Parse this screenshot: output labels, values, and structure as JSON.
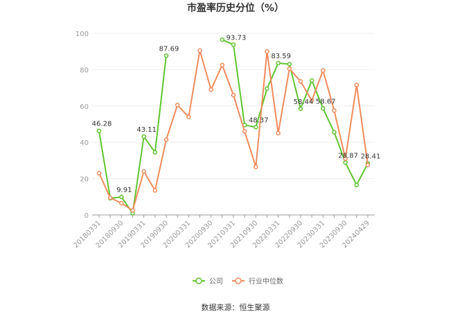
{
  "chart_data": {
    "type": "line",
    "title": "市盈率历史分位（%）",
    "source": "数据来源：恒生聚源",
    "xlabel": "",
    "ylabel": "",
    "ylim": [
      0,
      100
    ],
    "y_ticks": [
      0,
      20,
      40,
      60,
      80,
      100
    ],
    "grid": true,
    "legend_position": "bottom",
    "x": [
      "20180331",
      "20180630",
      "20180930",
      "20181231",
      "20190331",
      "20190630",
      "20190930",
      "20191231",
      "20200331",
      "20200630",
      "20200930",
      "20201231",
      "20210331",
      "20210630",
      "20210930",
      "20211231",
      "20220331",
      "20220630",
      "20220930",
      "20221231",
      "20230331",
      "20230630",
      "20230930",
      "20231231",
      "20240429"
    ],
    "x_tick_labels": [
      "20180331",
      "20180930",
      "20190331",
      "20190930",
      "20200331",
      "20200930",
      "20210331",
      "20210930",
      "20220331",
      "20220930",
      "20230331",
      "20230930",
      "20240429"
    ],
    "series": [
      {
        "name": "公司",
        "color": "#5fc42f",
        "values": [
          46.28,
          9.2,
          9.91,
          1.0,
          43.11,
          34.5,
          87.69,
          null,
          null,
          null,
          null,
          96.5,
          93.73,
          49.5,
          48.37,
          69.5,
          83.59,
          83.0,
          58.44,
          74.0,
          58.67,
          45.5,
          28.87,
          16.5,
          28.41
        ],
        "labels": [
          "46.28",
          "",
          "9.91",
          "",
          "43.11",
          "",
          "87.69",
          "",
          "",
          "",
          "",
          "",
          "93.73",
          "",
          "48.37",
          "",
          "83.59",
          "",
          "58.44",
          "",
          "58.67",
          "",
          "28.87",
          "",
          "28.41"
        ]
      },
      {
        "name": "行业中位数",
        "color": "#f08a5b",
        "values": [
          23.0,
          9.5,
          6.5,
          2.5,
          24.0,
          13.5,
          41.5,
          60.5,
          54.0,
          90.5,
          69.0,
          82.5,
          66.0,
          46.0,
          26.5,
          90.0,
          45.0,
          80.5,
          73.5,
          63.0,
          79.5,
          57.5,
          31.0,
          71.5,
          27.5
        ],
        "labels": []
      }
    ]
  }
}
